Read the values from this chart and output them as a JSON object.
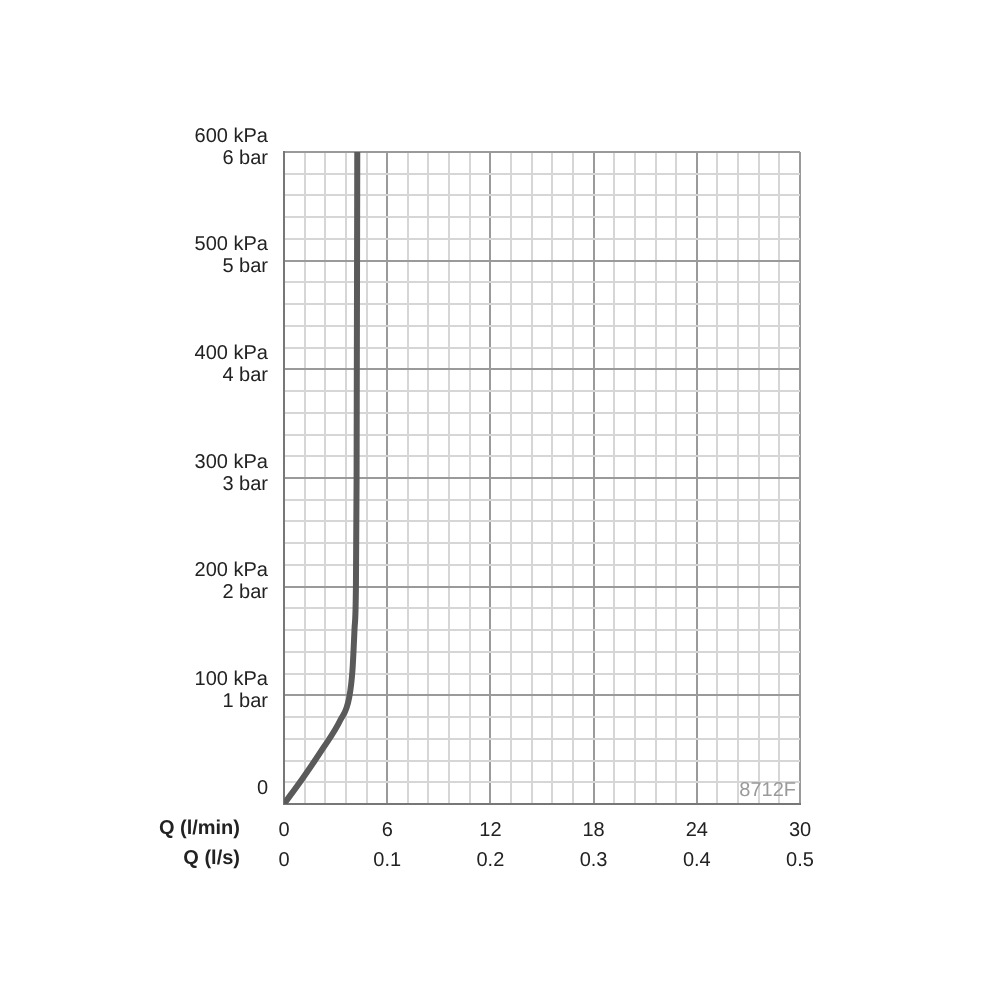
{
  "chart_data": {
    "type": "line",
    "xlabel": "Q (l/min)",
    "x2label": "Q (l/s)",
    "annotations": [
      "8712F"
    ],
    "series": [
      {
        "color": "#5a5a5a",
        "x": [
          0,
          1.1,
          2.3,
          3.27,
          3.79,
          3.98,
          4.1,
          4.18,
          4.22,
          4.26
        ],
        "values": [
          0,
          24,
          52,
          77,
          98,
          123,
          161,
          198,
          298,
          600
        ]
      }
    ],
    "xlim": [
      0,
      30
    ],
    "xticks": [
      0,
      {
        "value": 1.2,
        "label": null
      },
      {
        "value": 2.4,
        "label": null
      },
      {
        "value": 3.6,
        "label": null
      },
      {
        "value": 4.8,
        "label": null
      },
      6,
      {
        "value": 7.2,
        "label": null
      },
      {
        "value": 8.4,
        "label": null
      },
      {
        "value": 9.6,
        "label": null
      },
      {
        "value": 10.8,
        "label": null
      },
      12,
      {
        "value": 13.2,
        "label": null
      },
      {
        "value": 14.4,
        "label": null
      },
      {
        "value": 15.6,
        "label": null
      },
      {
        "value": 16.8,
        "label": null
      },
      18,
      {
        "value": 19.2,
        "label": null
      },
      {
        "value": 20.4,
        "label": null
      },
      {
        "value": 21.6,
        "label": null
      },
      {
        "value": 22.8,
        "label": null
      },
      24,
      {
        "value": 25.2,
        "label": null
      },
      {
        "value": 26.4,
        "label": null
      },
      {
        "value": 27.6,
        "label": null
      },
      {
        "value": 28.8,
        "label": null
      },
      30
    ],
    "x2lim": [
      0,
      0.5
    ],
    "x2ticks": [
      0,
      0.1,
      0.2,
      0.3,
      0.4,
      0.5
    ],
    "ylim": [
      0,
      600
    ],
    "yticks": [
      0,
      {
        "value": 20,
        "label": null
      },
      {
        "value": 40,
        "label": null
      },
      {
        "value": 60,
        "label": null
      },
      {
        "value": 80,
        "label": null
      },
      {
        "value": 100,
        "label": "100 kPa"
      },
      {
        "value": 120,
        "label": null
      },
      {
        "value": 140,
        "label": null
      },
      {
        "value": 160,
        "label": null
      },
      {
        "value": 180,
        "label": null
      },
      {
        "value": 200,
        "label": "200 kPa"
      },
      {
        "value": 220,
        "label": null
      },
      {
        "value": 240,
        "label": null
      },
      {
        "value": 260,
        "label": null
      },
      {
        "value": 280,
        "label": null
      },
      {
        "value": 300,
        "label": "300 kPa"
      },
      {
        "value": 320,
        "label": null
      },
      {
        "value": 340,
        "label": null
      },
      {
        "value": 360,
        "label": null
      },
      {
        "value": 380,
        "label": null
      },
      {
        "value": 400,
        "label": "400 kPa"
      },
      {
        "value": 420,
        "label": null
      },
      {
        "value": 440,
        "label": null
      },
      {
        "value": 460,
        "label": null
      },
      {
        "value": 480,
        "label": null
      },
      {
        "value": 500,
        "label": "500 kPa"
      },
      {
        "value": 520,
        "label": null
      },
      {
        "value": 540,
        "label": null
      },
      {
        "value": 560,
        "label": null
      },
      {
        "value": 580,
        "label": null
      },
      {
        "value": 600,
        "label": "600 kPa"
      }
    ],
    "y2lim": [
      0,
      6
    ],
    "y2ticks": [
      {
        "value": 1,
        "label": "1 bar"
      },
      {
        "value": 2,
        "label": "2 bar"
      },
      {
        "value": 3,
        "label": "3 bar"
      },
      {
        "value": 4,
        "label": "4 bar"
      },
      {
        "value": 5,
        "label": "5 bar"
      },
      {
        "value": 6,
        "label": "6 bar"
      }
    ],
    "grid": true,
    "marker": "none",
    "line_style": "solid"
  }
}
